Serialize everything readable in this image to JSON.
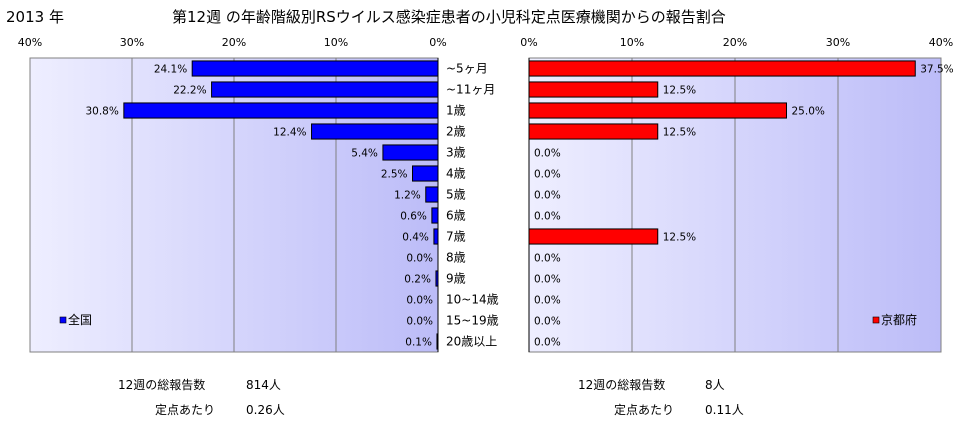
{
  "header": {
    "year": "2013 年",
    "title": "第12週 の年齢階級別RSウイルス感染症患者の小児科定点医療機関からの報告割合"
  },
  "chart_data": [
    {
      "type": "bar",
      "orientation": "horizontal",
      "direction": "right-to-left",
      "categories": [
        "~5ヶ月",
        "~11ヶ月",
        "1歳",
        "2歳",
        "3歳",
        "4歳",
        "5歳",
        "6歳",
        "7歳",
        "8歳",
        "9歳",
        "10~14歳",
        "15~19歳",
        "20歳以上"
      ],
      "series": [
        {
          "name": "全国",
          "color": "#0000ff",
          "values": [
            24.1,
            22.2,
            30.8,
            12.4,
            5.4,
            2.5,
            1.2,
            0.6,
            0.4,
            0.0,
            0.2,
            0.0,
            0.0,
            0.1
          ],
          "labels": [
            "24.1%",
            "22.2%",
            "30.8%",
            "12.4%",
            "5.4%",
            "2.5%",
            "1.2%",
            "0.6%",
            "0.4%",
            "0.0%",
            "0.2%",
            "0.0%",
            "0.0%",
            "0.1%"
          ]
        }
      ],
      "xlim": [
        0,
        40
      ],
      "ticks": [
        "40%",
        "30%",
        "20%",
        "10%",
        "0%"
      ],
      "grid": true,
      "legend": "bottom-left"
    },
    {
      "type": "bar",
      "orientation": "horizontal",
      "direction": "left-to-right",
      "categories": [
        "~5ヶ月",
        "~11ヶ月",
        "1歳",
        "2歳",
        "3歳",
        "4歳",
        "5歳",
        "6歳",
        "7歳",
        "8歳",
        "9歳",
        "10~14歳",
        "15~19歳",
        "20歳以上"
      ],
      "series": [
        {
          "name": "京都府",
          "color": "#ff0000",
          "values": [
            37.5,
            12.5,
            25.0,
            12.5,
            0.0,
            0.0,
            0.0,
            0.0,
            12.5,
            0.0,
            0.0,
            0.0,
            0.0,
            0.0
          ],
          "labels": [
            "37.5%",
            "12.5%",
            "25.0%",
            "12.5%",
            "0.0%",
            "0.0%",
            "0.0%",
            "0.0%",
            "12.5%",
            "0.0%",
            "0.0%",
            "0.0%",
            "0.0%",
            "0.0%"
          ]
        }
      ],
      "xlim": [
        0,
        40
      ],
      "ticks": [
        "0%",
        "10%",
        "20%",
        "30%",
        "40%"
      ],
      "grid": true,
      "legend": "bottom-right"
    }
  ],
  "summary": {
    "left": {
      "reports_label": "12週の総報告数",
      "reports_value": "814人",
      "per_site_label": "定点あたり",
      "per_site_value": "0.26人"
    },
    "right": {
      "reports_label": "12週の総報告数",
      "reports_value": "8人",
      "per_site_label": "定点あたり",
      "per_site_value": "0.11人"
    }
  }
}
